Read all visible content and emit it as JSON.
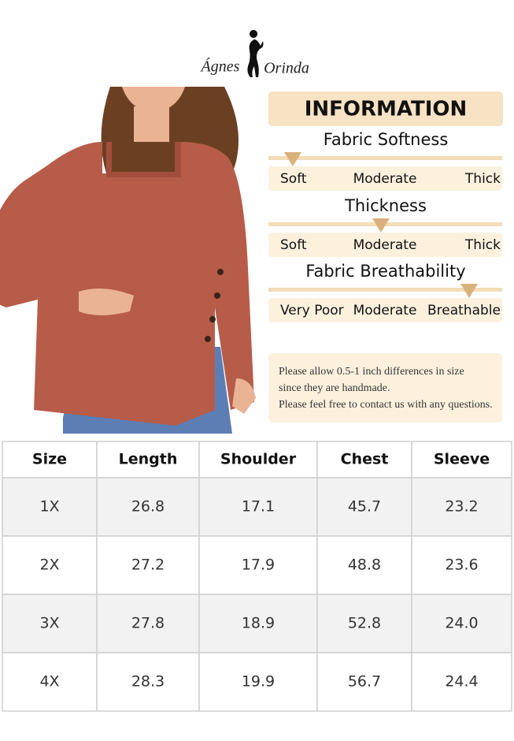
{
  "brand": {
    "first": "Ágnes",
    "last": "Orinda"
  },
  "info": {
    "title": "INFORMATION",
    "sections": [
      {
        "label": "Fabric Softness",
        "options": [
          "Soft",
          "Moderate",
          "Thick"
        ],
        "selected": 0
      },
      {
        "label": "Thickness",
        "options": [
          "Soft",
          "Moderate",
          "Thick"
        ],
        "selected": 1
      },
      {
        "label": "Fabric Breathability",
        "options": [
          "Very Poor",
          "Moderate",
          "Breathable"
        ],
        "selected": 2
      }
    ],
    "note": [
      "Please allow 0.5-1 inch differences in size",
      "since they are handmade.",
      "Please feel free to contact us with any questions."
    ]
  },
  "table": {
    "header": [
      "Size",
      "Length",
      "Shoulder",
      "Chest",
      "Sleeve"
    ],
    "rows": [
      [
        "1X",
        "26.8",
        "17.1",
        "45.7",
        "23.2"
      ],
      [
        "2X",
        "27.2",
        "17.9",
        "48.8",
        "23.6"
      ],
      [
        "3X",
        "27.8",
        "18.9",
        "52.8",
        "24.0"
      ],
      [
        "4X",
        "28.3",
        "19.9",
        "56.7",
        "24.4"
      ]
    ]
  }
}
